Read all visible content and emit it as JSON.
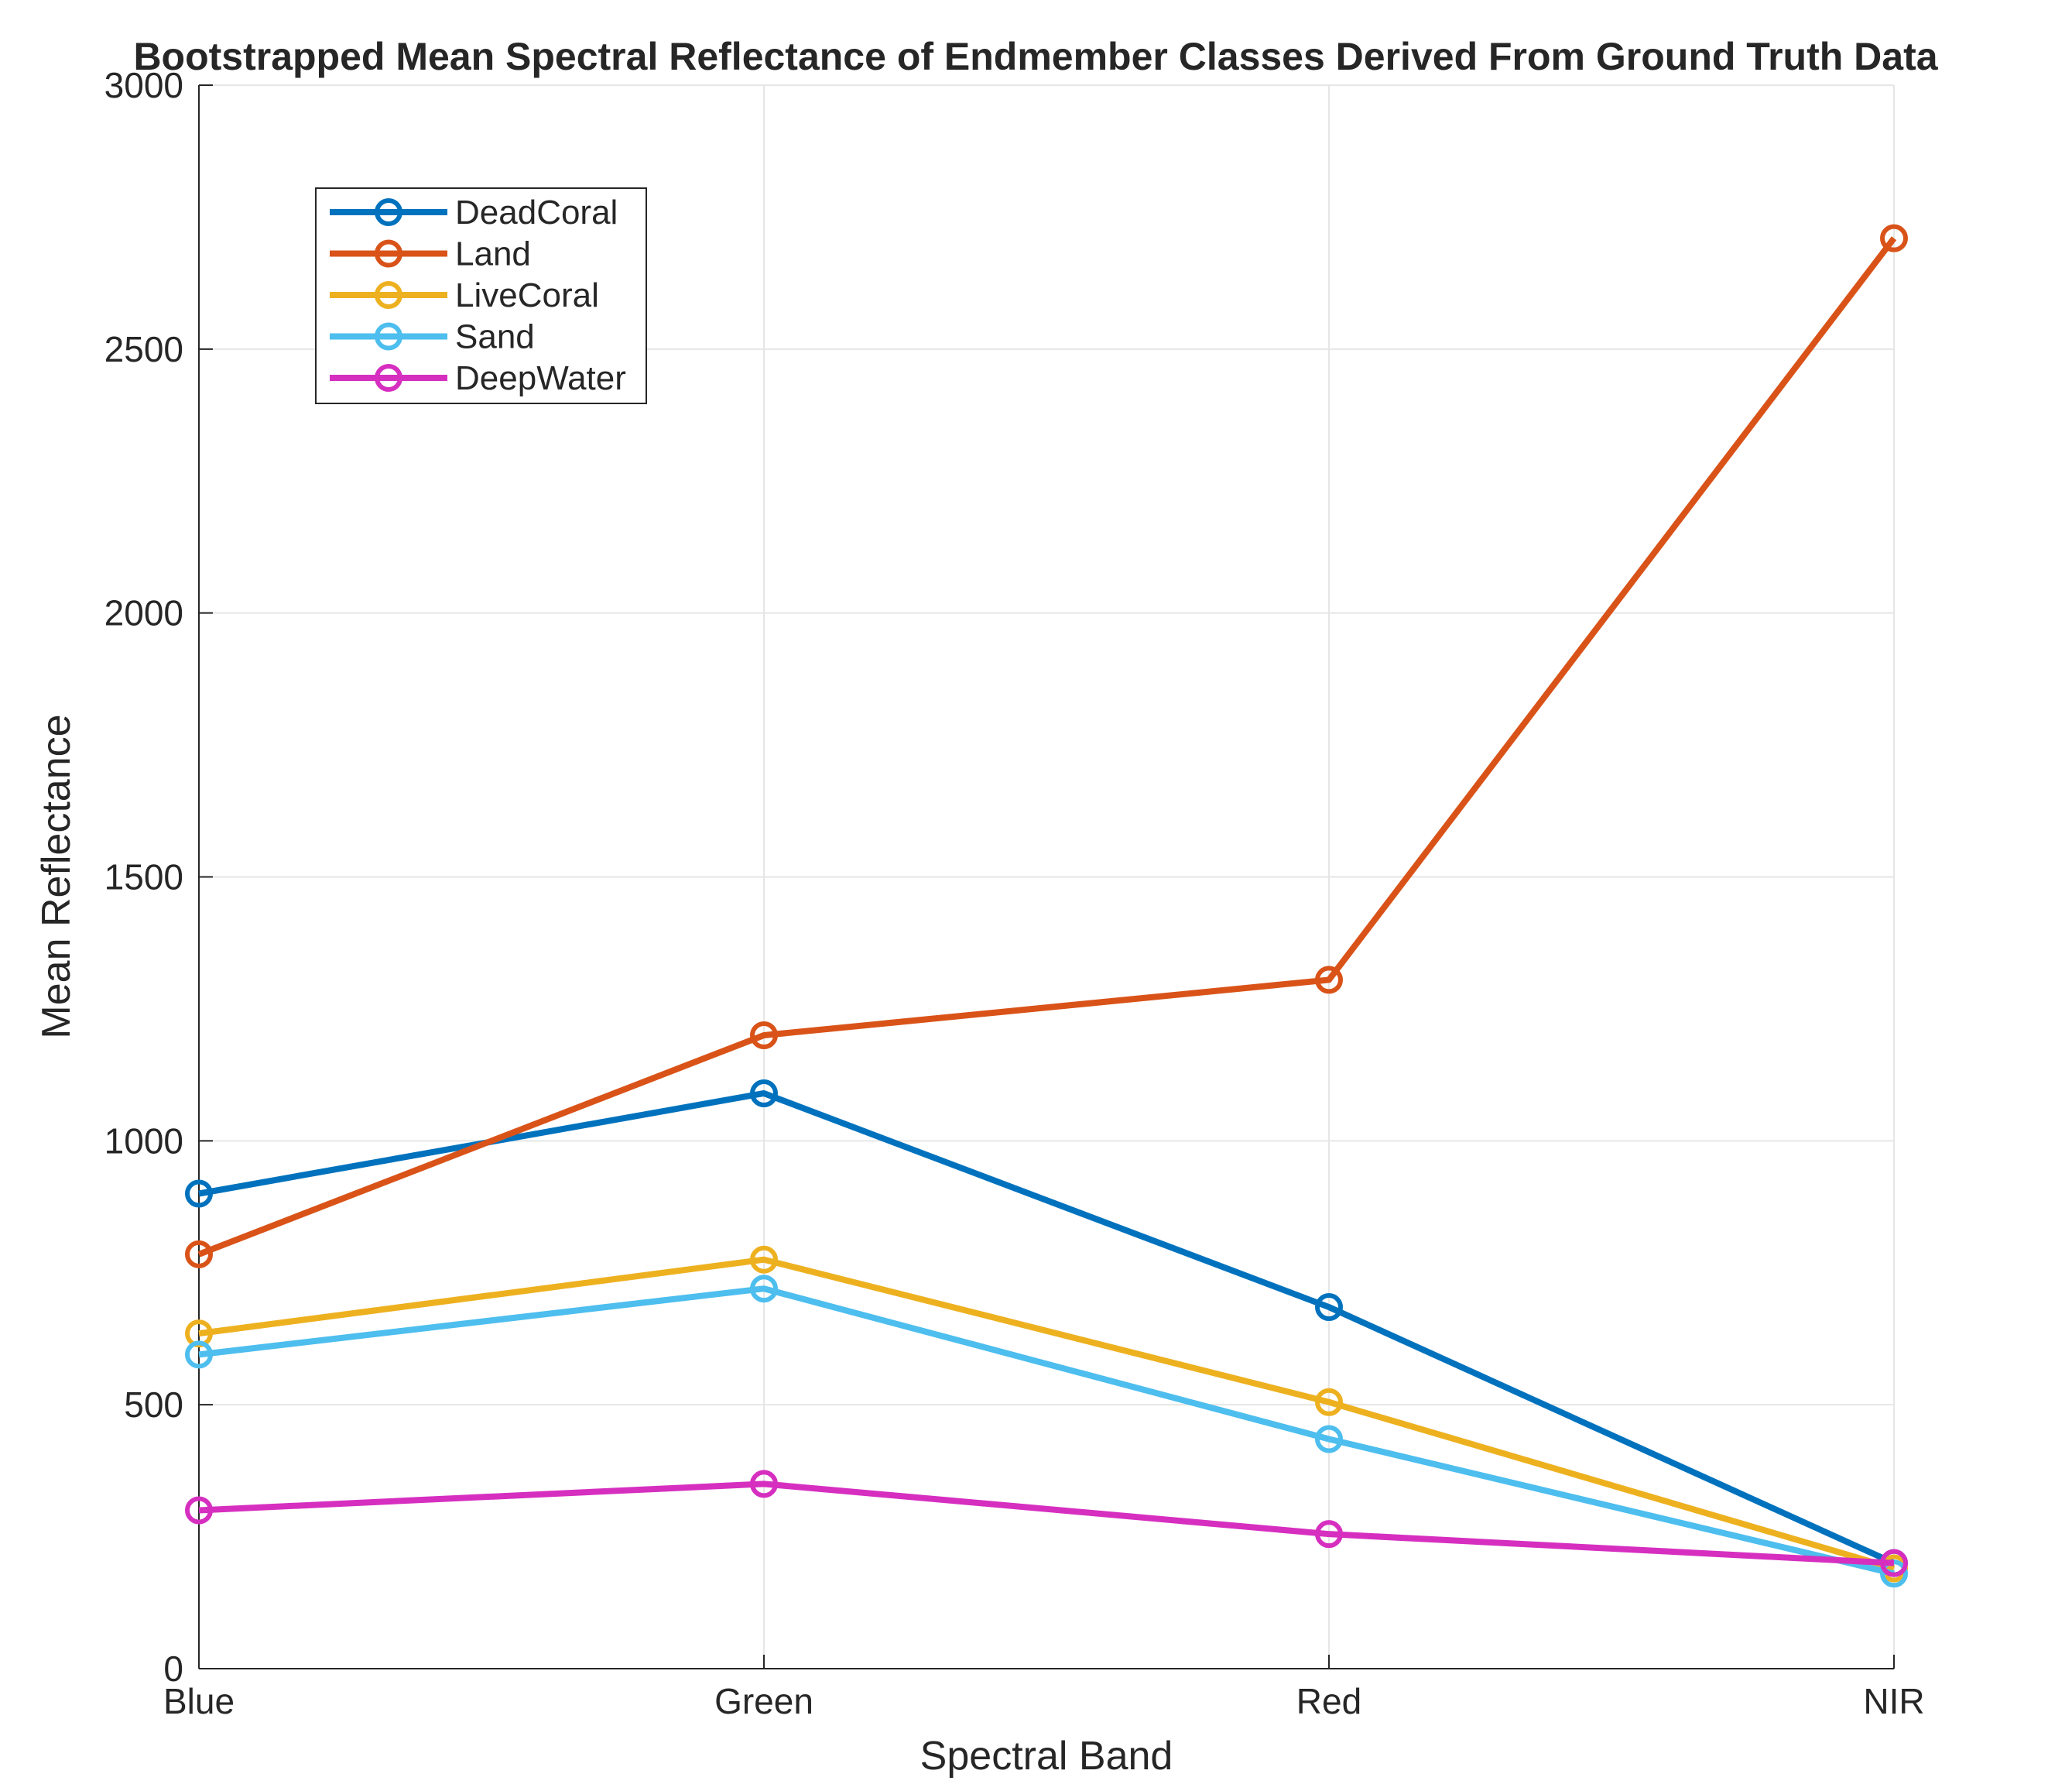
{
  "chart_data": {
    "type": "line",
    "title": "Bootstrapped Mean Spectral Reflectance of Endmember Classes Derived From Ground Truth Data",
    "xlabel": "Spectral Band",
    "ylabel": "Mean Reflectance",
    "categories": [
      "Blue",
      "Green",
      "Red",
      "NIR"
    ],
    "ylim": [
      0,
      3000
    ],
    "yticks": [
      "0",
      "500",
      "1000",
      "1500",
      "2000",
      "2500",
      "3000"
    ],
    "grid": true,
    "legend_position": "top-left",
    "marker": "circle",
    "series": [
      {
        "name": "DeadCoral",
        "color": "#0072BD",
        "values": [
          900,
          1090,
          685,
          200
        ]
      },
      {
        "name": "Land",
        "color": "#D95319",
        "values": [
          785,
          1200,
          1305,
          2710
        ]
      },
      {
        "name": "LiveCoral",
        "color": "#EDB120",
        "values": [
          635,
          775,
          505,
          190
        ]
      },
      {
        "name": "Sand",
        "color": "#4DBEEE",
        "values": [
          595,
          720,
          435,
          180
        ]
      },
      {
        "name": "DeepWater",
        "color": "#D62FC0",
        "values": [
          300,
          350,
          255,
          200
        ]
      }
    ]
  }
}
